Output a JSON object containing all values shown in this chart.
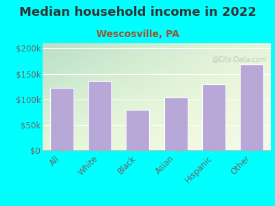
{
  "title": "Median household income in 2022",
  "subtitle": "Wescosville, PA",
  "categories": [
    "All",
    "White",
    "Black",
    "Asian",
    "Hispanic",
    "Other"
  ],
  "values": [
    123000,
    136000,
    80000,
    104000,
    129000,
    168000
  ],
  "bar_color": "#b8a8d8",
  "background_color": "#00ffff",
  "title_color": "#333333",
  "subtitle_color": "#a0522d",
  "tick_color": "#666666",
  "ylim": [
    0,
    210000
  ],
  "yticks": [
    0,
    50000,
    100000,
    150000,
    200000
  ],
  "ytick_labels": [
    "$0",
    "$50k",
    "$100k",
    "$150k",
    "$200k"
  ],
  "watermark": "@City-Data.com",
  "title_fontsize": 13,
  "subtitle_fontsize": 10,
  "tick_fontsize": 8.5
}
